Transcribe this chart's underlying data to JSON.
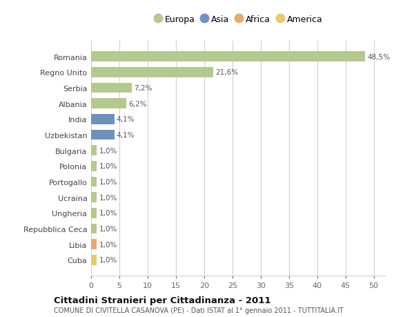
{
  "countries": [
    "Romania",
    "Regno Unito",
    "Serbia",
    "Albania",
    "India",
    "Uzbekistan",
    "Bulgaria",
    "Polonia",
    "Portogallo",
    "Ucraina",
    "Ungheria",
    "Repubblica Ceca",
    "Libia",
    "Cuba"
  ],
  "values": [
    48.5,
    21.6,
    7.2,
    6.2,
    4.1,
    4.1,
    1.0,
    1.0,
    1.0,
    1.0,
    1.0,
    1.0,
    1.0,
    1.0
  ],
  "labels": [
    "48,5%",
    "21,6%",
    "7,2%",
    "6,2%",
    "4,1%",
    "4,1%",
    "1,0%",
    "1,0%",
    "1,0%",
    "1,0%",
    "1,0%",
    "1,0%",
    "1,0%",
    "1,0%"
  ],
  "continents": [
    "Europa",
    "Europa",
    "Europa",
    "Europa",
    "Asia",
    "Asia",
    "Europa",
    "Europa",
    "Europa",
    "Europa",
    "Europa",
    "Europa",
    "Africa",
    "America"
  ],
  "colors": {
    "Europa": "#b5c98e",
    "Asia": "#7090bf",
    "Africa": "#e8a870",
    "America": "#e8c870"
  },
  "legend_order": [
    "Europa",
    "Asia",
    "Africa",
    "America"
  ],
  "xlim": [
    0,
    52
  ],
  "xticks": [
    0,
    5,
    10,
    15,
    20,
    25,
    30,
    35,
    40,
    45,
    50
  ],
  "title1": "Cittadini Stranieri per Cittadinanza - 2011",
  "title2": "COMUNE DI CIVITELLA CASANOVA (PE) - Dati ISTAT al 1° gennaio 2011 - TUTTITALIA.IT",
  "bg_color": "#ffffff",
  "grid_color": "#d0d0d0"
}
